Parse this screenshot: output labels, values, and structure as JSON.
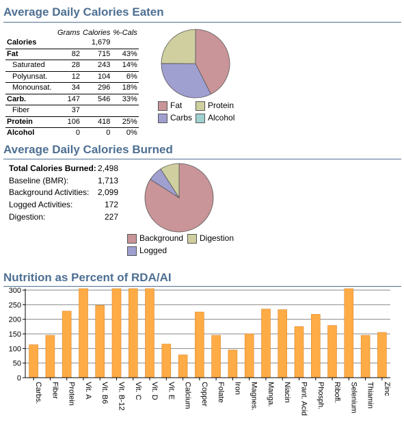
{
  "eaten": {
    "title": "Average Daily Calories Eaten",
    "headers": [
      "",
      "Grams",
      "Calories",
      "%-Cals"
    ],
    "rows": [
      {
        "label": "Calories",
        "grams": "",
        "calories": "1,679",
        "pct": "",
        "bold": true,
        "sub": false
      },
      {
        "label": "Fat",
        "grams": "82",
        "calories": "715",
        "pct": "43%",
        "bold": true,
        "sub": false
      },
      {
        "label": "Saturated",
        "grams": "28",
        "calories": "243",
        "pct": "14%",
        "bold": false,
        "sub": true
      },
      {
        "label": "Polyunsat.",
        "grams": "12",
        "calories": "104",
        "pct": "6%",
        "bold": false,
        "sub": true
      },
      {
        "label": "Monounsat.",
        "grams": "34",
        "calories": "296",
        "pct": "18%",
        "bold": false,
        "sub": true
      },
      {
        "label": "Carb.",
        "grams": "147",
        "calories": "546",
        "pct": "33%",
        "bold": true,
        "sub": false
      },
      {
        "label": "Fiber",
        "grams": "37",
        "calories": "",
        "pct": "",
        "bold": false,
        "sub": true
      },
      {
        "label": "Protein",
        "grams": "106",
        "calories": "418",
        "pct": "25%",
        "bold": true,
        "sub": false
      },
      {
        "label": "Alcohol",
        "grams": "0",
        "calories": "0",
        "pct": "0%",
        "bold": true,
        "sub": false
      }
    ],
    "legend": [
      {
        "label": "Fat",
        "color": "#c99598"
      },
      {
        "label": "Protein",
        "color": "#cfcf9f"
      },
      {
        "label": "Carbs",
        "color": "#9f9fd0"
      },
      {
        "label": "Alcohol",
        "color": "#9fd0d0"
      }
    ]
  },
  "burned": {
    "title": "Average Daily Calories Burned",
    "rows": [
      {
        "label": "Total Calories Burned:",
        "value": "2,498",
        "bold": true
      },
      {
        "label": "Baseline (BMR):",
        "value": "1,713",
        "bold": false
      },
      {
        "label": "Background Activities:",
        "value": "2,099",
        "bold": false
      },
      {
        "label": "Logged Activities:",
        "value": "172",
        "bold": false
      },
      {
        "label": "Digestion:",
        "value": "227",
        "bold": false
      }
    ],
    "legend": [
      {
        "label": "Background",
        "color": "#c99598"
      },
      {
        "label": "Digestion",
        "color": "#cfcf9f"
      },
      {
        "label": "Logged",
        "color": "#9f9fd0"
      }
    ]
  },
  "rda": {
    "title": "Nutrition as Percent of RDA/AI"
  },
  "chart_data": [
    {
      "type": "pie",
      "categories": [
        "Fat",
        "Carbs",
        "Protein",
        "Alcohol"
      ],
      "values": [
        715,
        546,
        418,
        0
      ],
      "colors": [
        "#c99598",
        "#9f9fd0",
        "#cfcf9f",
        "#9fd0d0"
      ],
      "legend": "below"
    },
    {
      "type": "pie",
      "categories": [
        "Background",
        "Logged",
        "Digestion"
      ],
      "values": [
        2099,
        172,
        227
      ],
      "colors": [
        "#c99598",
        "#9f9fd0",
        "#cfcf9f"
      ],
      "legend": "below"
    },
    {
      "type": "bar",
      "categories": [
        "Carbs.",
        "Fiber",
        "Protein",
        "Vit. A",
        "Vit. B6",
        "Vit. B-12",
        "Vit. C",
        "Vit. D",
        "Vit. E",
        "Calcium",
        "Copper",
        "Folate",
        "Iron",
        "Magnes.",
        "Manga.",
        "Niacin",
        "Pant. Acid",
        "Phosph.",
        "Ribofl.",
        "Selenium",
        "Thiamin",
        "Zinc"
      ],
      "values": [
        113,
        145,
        228,
        305,
        248,
        305,
        305,
        305,
        115,
        78,
        225,
        145,
        95,
        150,
        235,
        233,
        175,
        217,
        179,
        305,
        145,
        155
      ],
      "ylim": [
        0,
        300
      ],
      "yticks": [
        "0",
        "50",
        "100",
        "150",
        "200",
        "250",
        "300"
      ],
      "grid": true,
      "bar_color": "#ffab46"
    }
  ]
}
